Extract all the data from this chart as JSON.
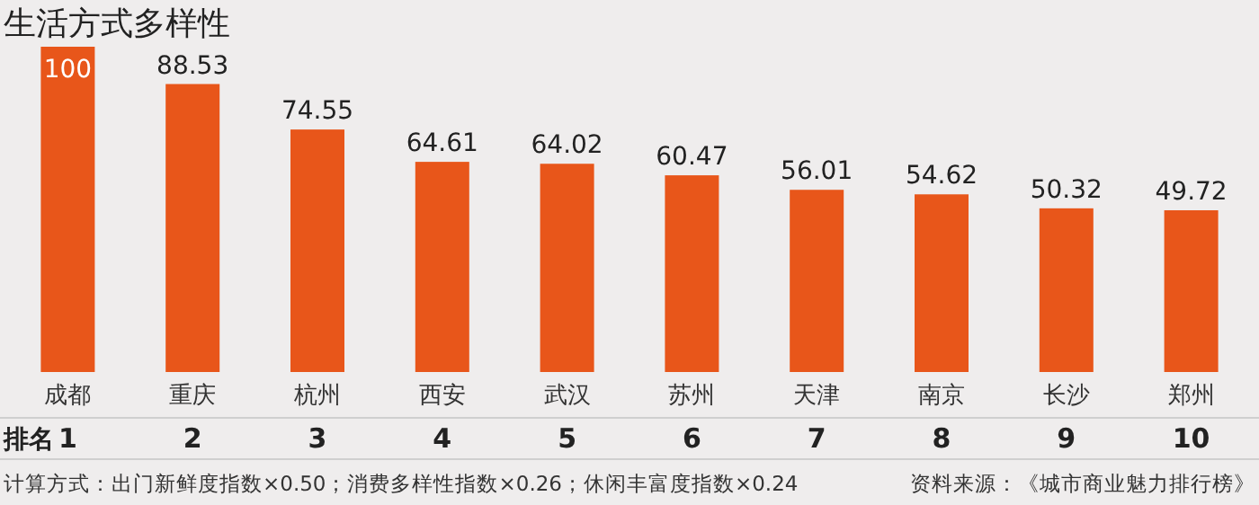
{
  "chart_data": {
    "type": "bar",
    "title": "生活方式多样性",
    "categories": [
      "成都",
      "重庆",
      "杭州",
      "西安",
      "武汉",
      "苏州",
      "天津",
      "南京",
      "长沙",
      "郑州"
    ],
    "values": [
      100,
      88.53,
      74.55,
      64.61,
      64.02,
      60.47,
      56.01,
      54.62,
      50.32,
      49.72
    ],
    "color": "#e8561a",
    "data_labels": true,
    "annotations": [
      "排名",
      "1",
      "2",
      "3",
      "4",
      "5",
      "6",
      "7",
      "8",
      "9",
      "10",
      "计算方式：出门新鲜度指数×0.50；消费多样性指数×0.26；休闲丰富度指数×0.24",
      "资料来源：《城市商业魅力排行榜》"
    ]
  }
}
